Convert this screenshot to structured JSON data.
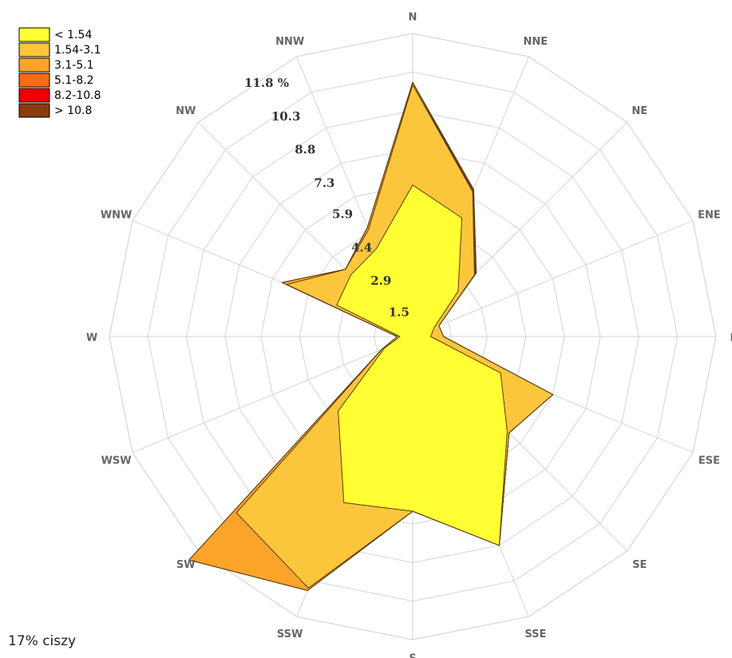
{
  "chart_data": {
    "type": "windrose",
    "categories": [
      "N",
      "NNE",
      "NE",
      "ENE",
      "E",
      "ESE",
      "SE",
      "SSE",
      "S",
      "SSW",
      "SW",
      "WSW",
      "W",
      "WNW",
      "NW",
      "NNW"
    ],
    "series": [
      {
        "name": "< 1.54",
        "color": "#ffff33",
        "values": [
          5.9,
          5.0,
          2.5,
          0.9,
          0.7,
          3.7,
          5.2,
          8.8,
          6.8,
          7.0,
          4.1,
          1.2,
          0.5,
          3.2,
          3.4,
          3.7
        ]
      },
      {
        "name": "1.54-3.1",
        "color": "#fcc63c",
        "values": [
          3.9,
          1.1,
          0.9,
          0.2,
          0.5,
          2.2,
          0.1,
          0,
          0,
          3.6,
          5.6,
          0.1,
          0.1,
          2.1,
          0.3,
          0.8
        ]
      },
      {
        "name": "3.1-5.1",
        "color": "#fca42a",
        "values": [
          0.1,
          0,
          0,
          0,
          0,
          0,
          0,
          0,
          0,
          0.1,
          2.6,
          0,
          0,
          0.2,
          0,
          0.1
        ]
      },
      {
        "name": "5.1-8.2",
        "color": "#f86a14",
        "values": [
          0,
          0,
          0,
          0,
          0,
          0,
          0,
          0,
          0,
          0,
          0,
          0,
          0,
          0,
          0,
          0
        ]
      },
      {
        "name": "8.2-10.8",
        "color": "#ee0000",
        "values": [
          0,
          0,
          0,
          0,
          0,
          0,
          0,
          0,
          0,
          0,
          0,
          0,
          0,
          0,
          0,
          0
        ]
      },
      {
        "name": "> 10.8",
        "color": "#8a3a10",
        "values": [
          0,
          0.1,
          0.1,
          0,
          0,
          0,
          0,
          0,
          0,
          0,
          0,
          0,
          0,
          0,
          0,
          0
        ]
      }
    ],
    "ylim": [
      0,
      11.8
    ],
    "yticks": [
      1.5,
      2.9,
      4.4,
      5.9,
      7.3,
      8.8,
      10.3,
      {
        "value": 11.8,
        "label": "11.8 %"
      }
    ],
    "grid": true,
    "legend": "upper left",
    "annotation": "17% ciszy"
  }
}
